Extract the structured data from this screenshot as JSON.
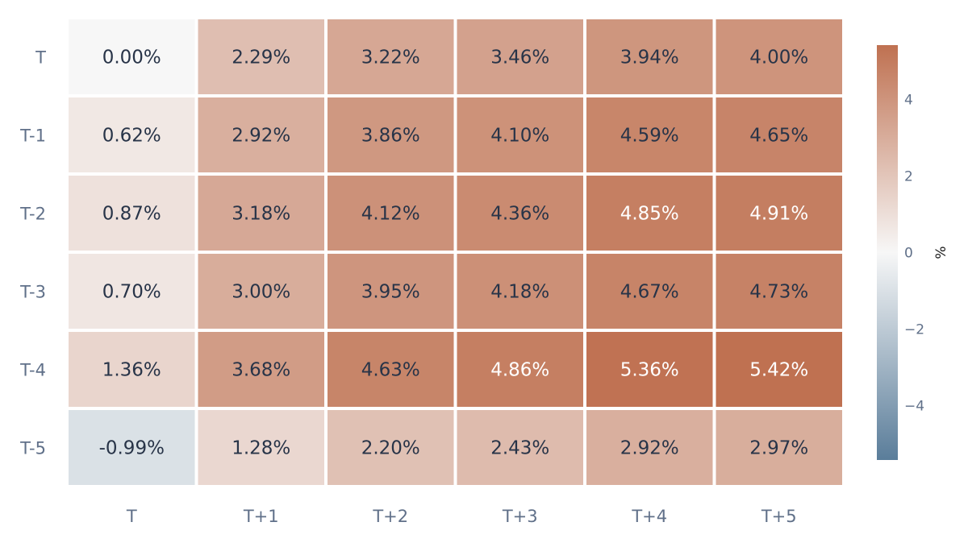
{
  "chart_data": {
    "type": "heatmap",
    "title": "",
    "xlabel": "",
    "ylabel": "",
    "x_categories": [
      "T",
      "T+1",
      "T+2",
      "T+3",
      "T+4",
      "T+5"
    ],
    "y_categories": [
      "T",
      "T-1",
      "T-2",
      "T-3",
      "T-4",
      "T-5"
    ],
    "values": [
      [
        0.0,
        2.29,
        3.22,
        3.46,
        3.94,
        4.0
      ],
      [
        0.62,
        2.92,
        3.86,
        4.1,
        4.59,
        4.65
      ],
      [
        0.87,
        3.18,
        4.12,
        4.36,
        4.85,
        4.91
      ],
      [
        0.7,
        3.0,
        3.95,
        4.18,
        4.67,
        4.73
      ],
      [
        1.36,
        3.68,
        4.63,
        4.86,
        5.36,
        5.42
      ],
      [
        -0.99,
        1.28,
        2.2,
        2.43,
        2.92,
        2.97
      ]
    ],
    "cell_labels": [
      [
        "0.00%",
        "2.29%",
        "3.22%",
        "3.46%",
        "3.94%",
        "4.00%"
      ],
      [
        "0.62%",
        "2.92%",
        "3.86%",
        "4.10%",
        "4.59%",
        "4.65%"
      ],
      [
        "0.87%",
        "3.18%",
        "4.12%",
        "4.36%",
        "4.85%",
        "4.91%"
      ],
      [
        "0.70%",
        "3.00%",
        "3.95%",
        "4.18%",
        "4.67%",
        "4.73%"
      ],
      [
        "1.36%",
        "3.68%",
        "4.63%",
        "4.86%",
        "5.36%",
        "5.42%"
      ],
      [
        "-0.99%",
        "1.28%",
        "2.20%",
        "2.43%",
        "2.92%",
        "2.97%"
      ]
    ],
    "color_range": [
      -5.42,
      5.42
    ],
    "colorscale": {
      "negative": "#5a7d9a",
      "mid": "#f7f7f7",
      "positive": "#bf7151"
    },
    "colorbar": {
      "title": "%",
      "ticks": [
        -4,
        -2,
        0,
        2,
        4
      ],
      "tick_labels": [
        "−4",
        "−2",
        "0",
        "2",
        "4"
      ]
    },
    "label_color_dark": "#283448",
    "label_color_light": "#ffffff",
    "tick_color": "#607089",
    "grid": false
  }
}
